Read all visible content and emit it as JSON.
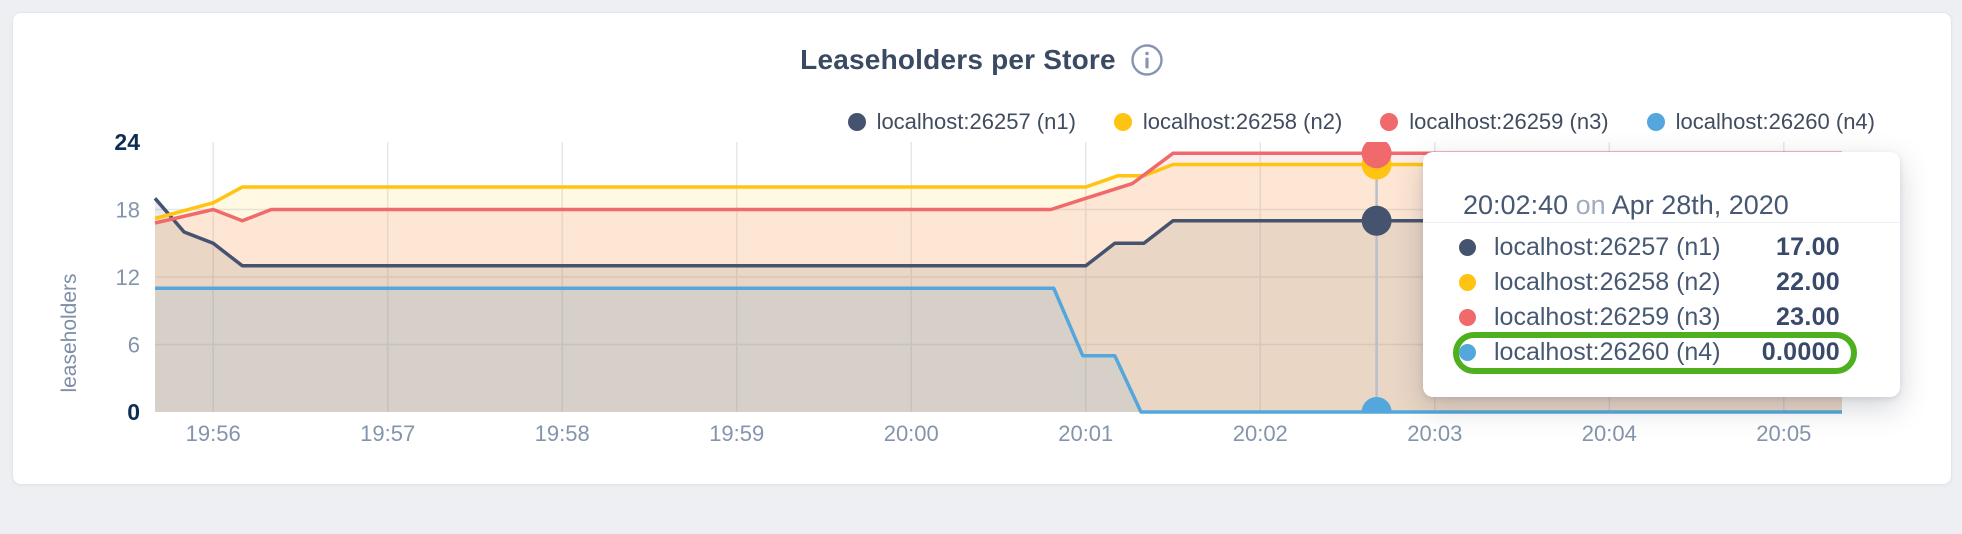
{
  "header": {
    "title": "Leaseholders per Store",
    "info_icon": "i"
  },
  "legend": {
    "items": [
      {
        "label": "localhost:26257 (n1)",
        "color": "#45536e"
      },
      {
        "label": "localhost:26258 (n2)",
        "color": "#ffc312"
      },
      {
        "label": "localhost:26259 (n3)",
        "color": "#f0696b"
      },
      {
        "label": "localhost:26260 (n4)",
        "color": "#54a7dc"
      }
    ]
  },
  "tooltip": {
    "time": "20:02:40",
    "on_word": "on",
    "date": "Apr 28th, 2020",
    "rows": [
      {
        "label": "localhost:26257 (n1)",
        "value": "17.00",
        "color": "#45536e",
        "highlighted": false
      },
      {
        "label": "localhost:26258 (n2)",
        "value": "22.00",
        "color": "#ffc312",
        "highlighted": false
      },
      {
        "label": "localhost:26259 (n3)",
        "value": "23.00",
        "color": "#f0696b",
        "highlighted": false
      },
      {
        "label": "localhost:26260 (n4)",
        "value": "0.0000",
        "color": "#54a7dc",
        "highlighted": true
      }
    ],
    "highlight_color": "#4fb01f"
  },
  "chart_data": {
    "type": "area",
    "title": "Leaseholders per Store",
    "xlabel": "",
    "ylabel": "leaseholders",
    "ylim": [
      0,
      24
    ],
    "y_ticks": [
      0,
      6,
      12,
      18,
      24
    ],
    "y_gridlines": [
      6,
      12,
      18
    ],
    "grid": true,
    "legend_position": "top-right",
    "x_start_time": "19:55:40",
    "x_end_time": "20:05:20",
    "x_total_seconds": 580,
    "x_ticks": [
      {
        "label": "19:56",
        "t": 20
      },
      {
        "label": "19:57",
        "t": 80
      },
      {
        "label": "19:58",
        "t": 140
      },
      {
        "label": "19:59",
        "t": 200
      },
      {
        "label": "20:00",
        "t": 260
      },
      {
        "label": "20:01",
        "t": 320
      },
      {
        "label": "20:02",
        "t": 380
      },
      {
        "label": "20:03",
        "t": 440
      },
      {
        "label": "20:04",
        "t": 500
      },
      {
        "label": "20:05",
        "t": 560
      }
    ],
    "fill_opacity": 0.12,
    "series": [
      {
        "name": "localhost:26257 (n1)",
        "color": "#45536e",
        "points": [
          [
            0,
            19
          ],
          [
            10,
            16
          ],
          [
            20,
            15
          ],
          [
            30,
            13
          ],
          [
            320,
            13
          ],
          [
            330,
            15
          ],
          [
            340,
            15
          ],
          [
            350,
            17
          ],
          [
            580,
            17
          ]
        ]
      },
      {
        "name": "localhost:26258 (n2)",
        "color": "#ffc312",
        "points": [
          [
            0,
            17.2
          ],
          [
            20,
            18.6
          ],
          [
            30,
            20
          ],
          [
            320,
            20
          ],
          [
            331,
            21
          ],
          [
            340,
            21
          ],
          [
            350,
            22
          ],
          [
            580,
            22
          ]
        ]
      },
      {
        "name": "localhost:26259 (n3)",
        "color": "#f0696b",
        "points": [
          [
            0,
            16.8
          ],
          [
            20,
            18
          ],
          [
            30,
            17
          ],
          [
            40,
            18
          ],
          [
            308,
            18
          ],
          [
            320,
            19
          ],
          [
            336,
            20.3
          ],
          [
            350,
            23
          ],
          [
            580,
            23
          ]
        ]
      },
      {
        "name": "localhost:26260 (n4)",
        "color": "#54a7dc",
        "points": [
          [
            0,
            11
          ],
          [
            309,
            11
          ],
          [
            319,
            5
          ],
          [
            330,
            5
          ],
          [
            339,
            0
          ],
          [
            580,
            0
          ]
        ]
      }
    ],
    "hover": {
      "t": 420,
      "time_label": "20:02:40",
      "values": [
        17,
        22,
        23,
        0
      ]
    }
  }
}
